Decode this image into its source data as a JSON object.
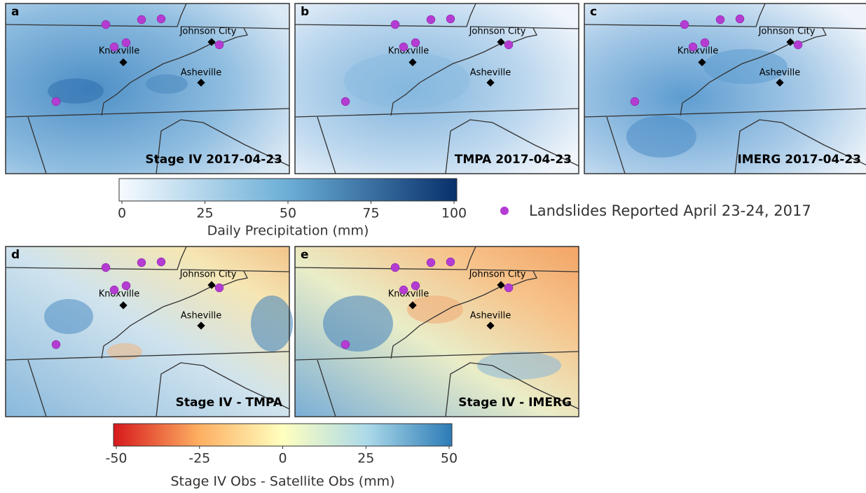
{
  "panels": [
    {
      "letter": "a",
      "title": "Stage IV 2017-04-23",
      "cities": [
        "Johnson City",
        "Knoxville",
        "Asheville"
      ]
    },
    {
      "letter": "b",
      "title": "TMPA 2017-04-23",
      "cities": [
        "Johnson City",
        "Knoxville",
        "Asheville"
      ]
    },
    {
      "letter": "c",
      "title": "IMERG 2017-04-23",
      "cities": [
        "Johnson City",
        "Knoxville",
        "Asheville"
      ]
    },
    {
      "letter": "d",
      "title": "Stage IV - TMPA",
      "cities": [
        "Johnson City",
        "Knoxville",
        "Asheville"
      ]
    },
    {
      "letter": "e",
      "title": "Stage IV - IMERG",
      "cities": [
        "Johnson City",
        "Knoxville",
        "Asheville"
      ]
    }
  ],
  "colorbars": [
    {
      "label": "Daily Precipitation (mm)",
      "lim": [
        0,
        100
      ],
      "ticks": [
        0,
        25,
        50,
        75,
        100
      ],
      "colors": [
        "#f7fbff",
        "#6baed6",
        "#08306b"
      ]
    },
    {
      "label": "Stage IV Obs - Satellite Obs (mm)",
      "lim": [
        -50,
        50
      ],
      "ticks": [
        -50,
        -25,
        0,
        25,
        50
      ],
      "colors": [
        "#d7191c",
        "#fdae61",
        "#ffffbf",
        "#abd9e9",
        "#2c7bb6"
      ]
    }
  ],
  "legend": {
    "label": "Landslides Reported April 23-24, 2017",
    "color": "#b43cd2"
  }
}
